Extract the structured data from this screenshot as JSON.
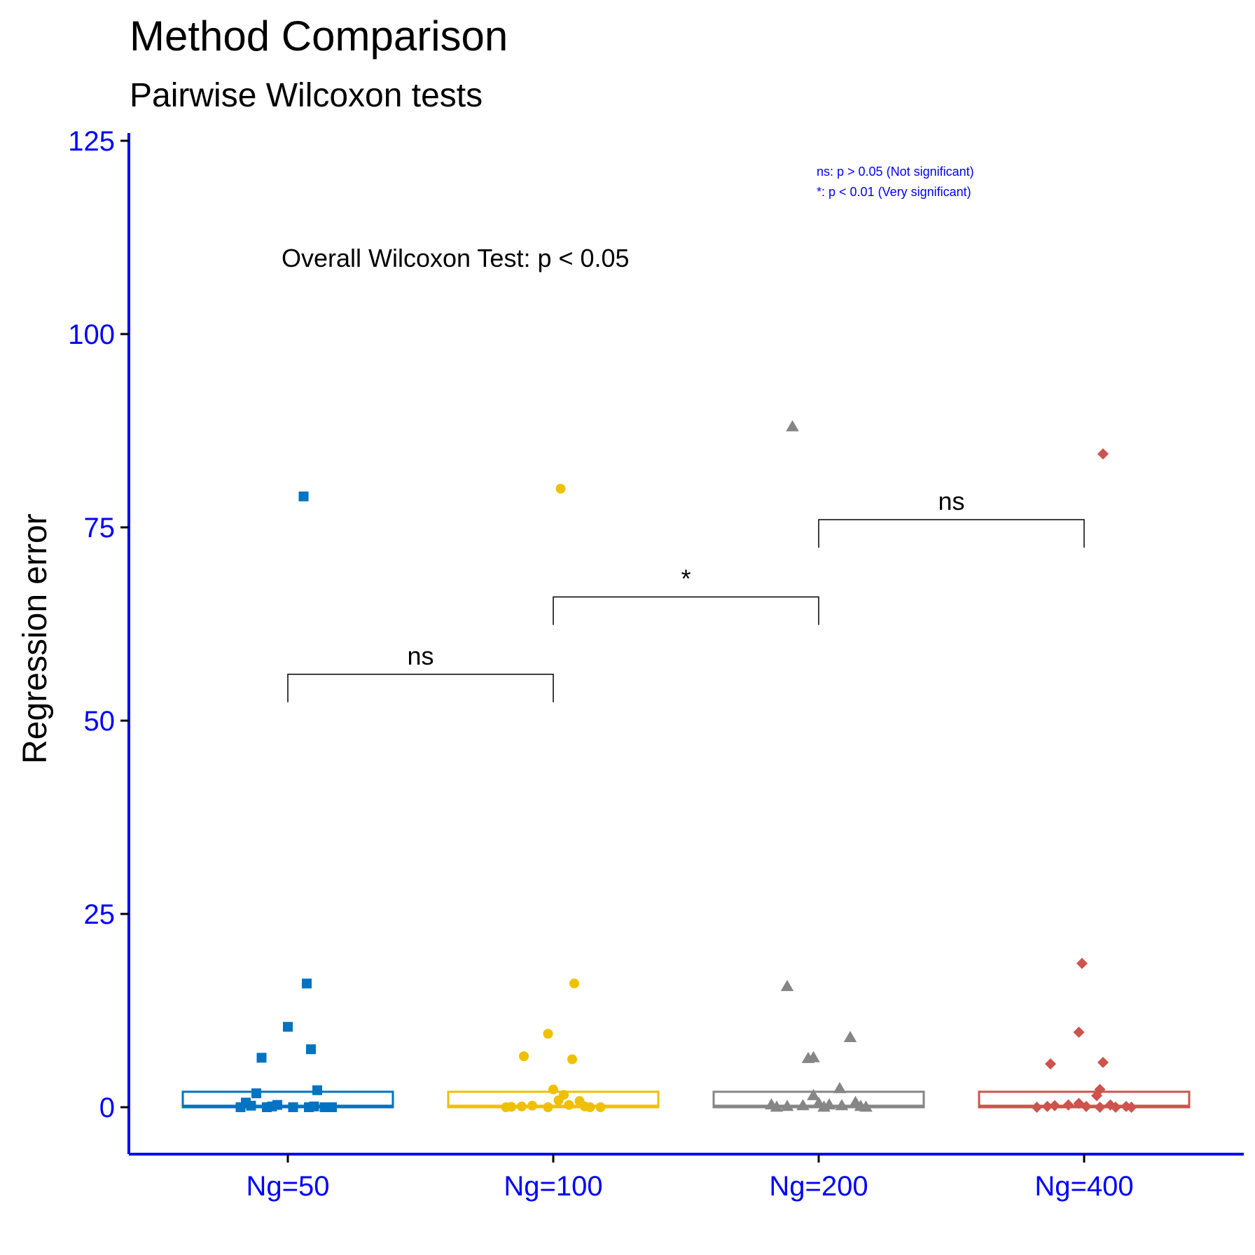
{
  "chart_data": {
    "type": "box",
    "title": "Method Comparison",
    "subtitle": "Pairwise Wilcoxon tests",
    "xlabel": "",
    "ylabel": "Regression error",
    "ylim": [
      -6,
      125
    ],
    "yticks": [
      0,
      25,
      50,
      75,
      100,
      125
    ],
    "categories": [
      "Ng=50",
      "Ng=100",
      "Ng=200",
      "Ng=400"
    ],
    "colors": {
      "axis": "#0000FF",
      "tick_text": "#0000FF",
      "Ng=50": "#0073C2",
      "Ng=100": "#EFC000",
      "Ng=200": "#868686",
      "Ng=400": "#CD534C"
    },
    "series": [
      {
        "category": "Ng=50",
        "marker": "square",
        "box": {
          "min": 0,
          "q1": 0,
          "median": 0.1,
          "q3": 2.0,
          "max": 2.0
        },
        "points": [
          [
            0.15,
            79
          ],
          [
            0.18,
            16
          ],
          [
            0.0,
            10.4
          ],
          [
            -0.25,
            6.4
          ],
          [
            0.22,
            7.5
          ],
          [
            0.28,
            2.2
          ],
          [
            -0.3,
            1.8
          ],
          [
            -0.4,
            0.6
          ],
          [
            -0.35,
            0.2
          ],
          [
            -0.2,
            0.0
          ],
          [
            -0.1,
            0.3
          ],
          [
            0.05,
            0.0
          ],
          [
            0.2,
            0.0
          ],
          [
            0.35,
            0.0
          ],
          [
            0.42,
            0.0
          ],
          [
            0.25,
            0.1
          ],
          [
            -0.45,
            0.0
          ],
          [
            -0.15,
            0.1
          ]
        ]
      },
      {
        "category": "Ng=100",
        "marker": "circle",
        "box": {
          "min": 0,
          "q1": 0,
          "median": 0.1,
          "q3": 2.0,
          "max": 2.0
        },
        "points": [
          [
            0.07,
            80
          ],
          [
            0.2,
            16
          ],
          [
            -0.05,
            9.5
          ],
          [
            -0.28,
            6.6
          ],
          [
            0.18,
            6.2
          ],
          [
            0.0,
            2.3
          ],
          [
            0.1,
            1.6
          ],
          [
            -0.45,
            0.0
          ],
          [
            -0.4,
            0.05
          ],
          [
            -0.3,
            0.1
          ],
          [
            -0.2,
            0.2
          ],
          [
            -0.05,
            0.0
          ],
          [
            0.05,
            0.9
          ],
          [
            0.15,
            0.3
          ],
          [
            0.25,
            0.8
          ],
          [
            0.35,
            0.0
          ],
          [
            0.45,
            0.0
          ],
          [
            0.3,
            0.1
          ]
        ]
      },
      {
        "category": "Ng=200",
        "marker": "triangle",
        "box": {
          "min": 0,
          "q1": 0,
          "median": 0.1,
          "q3": 2.0,
          "max": 2.0
        },
        "points": [
          [
            -0.25,
            88
          ],
          [
            -0.3,
            15.6
          ],
          [
            0.3,
            9.0
          ],
          [
            -0.1,
            6.3
          ],
          [
            -0.05,
            6.4
          ],
          [
            0.2,
            2.4
          ],
          [
            -0.05,
            1.5
          ],
          [
            -0.45,
            0.3
          ],
          [
            -0.3,
            0.1
          ],
          [
            -0.15,
            0.2
          ],
          [
            0.0,
            0.5
          ],
          [
            0.1,
            0.3
          ],
          [
            0.22,
            0.2
          ],
          [
            0.35,
            0.6
          ],
          [
            0.45,
            0.0
          ],
          [
            0.4,
            0.1
          ],
          [
            -0.4,
            0.0
          ],
          [
            0.05,
            0.0
          ]
        ]
      },
      {
        "category": "Ng=400",
        "marker": "diamond",
        "box": {
          "min": 0,
          "q1": 0,
          "median": 0.1,
          "q3": 2.0,
          "max": 2.0
        },
        "points": [
          [
            0.18,
            84.5
          ],
          [
            -0.02,
            18.6
          ],
          [
            -0.05,
            9.7
          ],
          [
            -0.32,
            5.6
          ],
          [
            0.18,
            5.8
          ],
          [
            0.15,
            2.3
          ],
          [
            0.12,
            1.5
          ],
          [
            -0.45,
            0.0
          ],
          [
            -0.35,
            0.1
          ],
          [
            -0.28,
            0.2
          ],
          [
            -0.15,
            0.3
          ],
          [
            -0.05,
            0.5
          ],
          [
            0.02,
            0.1
          ],
          [
            0.15,
            0.0
          ],
          [
            0.3,
            0.0
          ],
          [
            0.4,
            0.1
          ],
          [
            0.45,
            0.0
          ],
          [
            0.25,
            0.3
          ]
        ]
      }
    ],
    "comparisons": [
      {
        "groups": [
          "Ng=50",
          "Ng=100"
        ],
        "label": "ns",
        "y": 56
      },
      {
        "groups": [
          "Ng=100",
          "Ng=200"
        ],
        "label": "*",
        "y": 66
      },
      {
        "groups": [
          "Ng=200",
          "Ng=400"
        ],
        "label": "ns",
        "y": 76
      }
    ],
    "annotations": {
      "overall_test": "Overall Wilcoxon Test: p < 0.05",
      "legend_lines": [
        "ns: p > 0.05 (Not significant)",
        "*: p < 0.01 (Very significant)"
      ]
    }
  }
}
